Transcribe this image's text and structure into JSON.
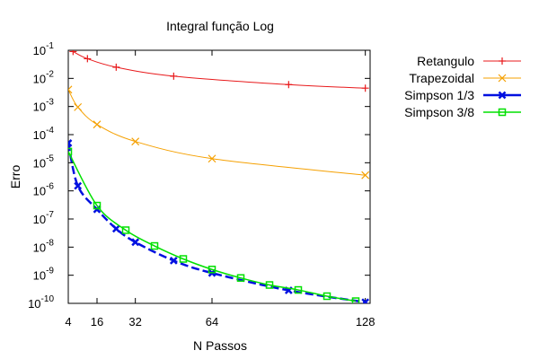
{
  "chart_data": {
    "type": "line",
    "title": "Integral função Log",
    "xlabel": "N Passos",
    "ylabel": "Erro",
    "xlim": [
      4,
      130
    ],
    "ylim": [
      1e-10,
      0.1
    ],
    "yscale": "log",
    "grid": false,
    "legend": "outside-right",
    "xticks": [
      4,
      16,
      32,
      64,
      128
    ],
    "yticks": [
      {
        "value": 0.1,
        "base": "10",
        "exp": "-1"
      },
      {
        "value": 0.01,
        "base": "10",
        "exp": "-2"
      },
      {
        "value": 0.001,
        "base": "10",
        "exp": "-3"
      },
      {
        "value": 0.0001,
        "base": "10",
        "exp": "-4"
      },
      {
        "value": 1e-05,
        "base": "10",
        "exp": "-5"
      },
      {
        "value": 1e-06,
        "base": "10",
        "exp": "-6"
      },
      {
        "value": 1e-07,
        "base": "10",
        "exp": "-7"
      },
      {
        "value": 1e-08,
        "base": "10",
        "exp": "-8"
      },
      {
        "value": 1e-09,
        "base": "10",
        "exp": "-9"
      },
      {
        "value": 1e-10,
        "base": "10",
        "exp": "-10"
      }
    ],
    "series": [
      {
        "name": "Retangulo",
        "color": "#e8191b",
        "marker": "plus",
        "width": 1,
        "x": [
          6,
          12,
          24,
          48,
          96,
          128
        ],
        "y": [
          0.09,
          0.05,
          0.025,
          0.012,
          0.006,
          0.0045
        ]
      },
      {
        "name": "Trapezoidal",
        "color": "#f5a000",
        "marker": "cross",
        "width": 1,
        "x": [
          4,
          8,
          16,
          32,
          64,
          128
        ],
        "y": [
          0.004,
          0.00095,
          0.00023,
          5.7e-05,
          1.4e-05,
          3.6e-06
        ]
      },
      {
        "name": "Simpson 1/3",
        "color": "#0010e0",
        "marker": "filledsquare",
        "width": 2.5,
        "x": [
          4,
          8,
          16,
          24,
          32,
          48,
          64,
          96,
          128
        ],
        "y": [
          5e-05,
          1.5e-06,
          2.2e-07,
          4.5e-08,
          1.5e-08,
          3.3e-09,
          1.2e-09,
          2.9e-10,
          1.1e-10
        ]
      },
      {
        "name": "Simpson 3/8",
        "color": "#00e000",
        "marker": "opensquare",
        "width": 1.5,
        "x": [
          4,
          16,
          28,
          40,
          52,
          64,
          76,
          88,
          100,
          112,
          124
        ],
        "y": [
          2.5e-05,
          3e-07,
          4e-08,
          1.1e-08,
          3.8e-09,
          1.6e-09,
          8e-10,
          4.5e-10,
          3e-10,
          1.8e-10,
          1.2e-10
        ]
      }
    ]
  }
}
